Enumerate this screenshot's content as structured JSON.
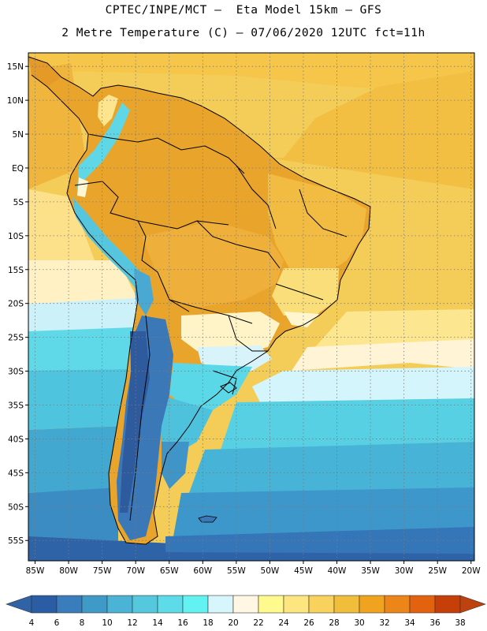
{
  "header": {
    "line1": "CPTEC/INPE/MCT –  Eta Model 15km – GFS",
    "line2": "2 Metre Temperature (C) – 07/06/2020 12UTC fct=11h"
  },
  "map": {
    "lat_labels": [
      "15N",
      "10N",
      "5N",
      "EQ",
      "5S",
      "10S",
      "15S",
      "20S",
      "25S",
      "30S",
      "35S",
      "40S",
      "45S",
      "50S",
      "55S"
    ],
    "lat_values": [
      15,
      10,
      5,
      0,
      -5,
      -10,
      -15,
      -20,
      -25,
      -30,
      -35,
      -40,
      -45,
      -50,
      -55
    ],
    "lon_labels": [
      "85W",
      "80W",
      "75W",
      "70W",
      "65W",
      "60W",
      "55W",
      "50W",
      "45W",
      "40W",
      "35W",
      "30W",
      "25W",
      "20W"
    ],
    "lon_values": [
      -85,
      -80,
      -75,
      -70,
      -65,
      -60,
      -55,
      -50,
      -45,
      -40,
      -35,
      -30,
      -25,
      -20
    ],
    "extent": {
      "lon_min": -86,
      "lon_max": -19.5,
      "lat_min": -58,
      "lat_max": 17
    },
    "field": "2 Metre Temperature",
    "units": "C"
  },
  "colorbar": {
    "labels": [
      "4",
      "6",
      "8",
      "10",
      "12",
      "14",
      "16",
      "18",
      "20",
      "22",
      "24",
      "26",
      "28",
      "30",
      "32",
      "34",
      "36",
      "38"
    ],
    "colors": [
      "#2b5da4",
      "#3a7dbc",
      "#3f9ac8",
      "#4bb3d5",
      "#55c8de",
      "#5ddbe8",
      "#62f2f2",
      "#d6f6fb",
      "#fff7e3",
      "#fffa8e",
      "#fde680",
      "#f8d25c",
      "#f0be3a",
      "#f0a31e",
      "#ec8618",
      "#e3620f",
      "#c63e08"
    ],
    "low_color": "#3062a6",
    "high_color": "#bd420e"
  }
}
